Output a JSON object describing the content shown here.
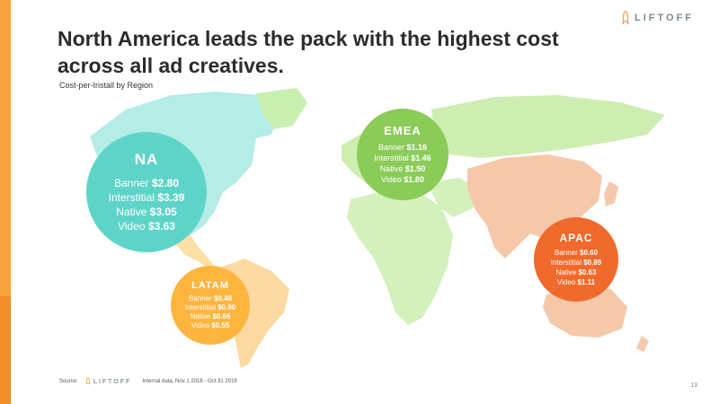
{
  "header": {
    "title": "North America leads the pack with the highest cost across all ad creatives.",
    "subtitle": "Cost-per-Install by Region",
    "logo_text": "LIFTOFF"
  },
  "colors": {
    "na": "#5ed4c8",
    "emea": "#8bcb58",
    "apac": "#f06a2b",
    "latam": "#fdb53e",
    "accent_bar": "#f7a23b"
  },
  "regions": {
    "na": {
      "name": "NA",
      "rows": [
        {
          "label": "Banner",
          "value": "$2.80"
        },
        {
          "label": "Interstitial",
          "value": "$3.39"
        },
        {
          "label": "Native",
          "value": "$3.05"
        },
        {
          "label": "Video",
          "value": "$3.63"
        }
      ]
    },
    "emea": {
      "name": "EMEA",
      "rows": [
        {
          "label": "Banner",
          "value": "$1.16"
        },
        {
          "label": "Interstitial",
          "value": "$1.46"
        },
        {
          "label": "Native",
          "value": "$1.50"
        },
        {
          "label": "Video",
          "value": "$1.80"
        }
      ]
    },
    "apac": {
      "name": "APAC",
      "rows": [
        {
          "label": "Banner",
          "value": "$0.60"
        },
        {
          "label": "Interstitial",
          "value": "$0.89"
        },
        {
          "label": "Native",
          "value": "$0.63"
        },
        {
          "label": "Video",
          "value": "$1.11"
        }
      ]
    },
    "latam": {
      "name": "LATAM",
      "rows": [
        {
          "label": "Banner",
          "value": "$0.48"
        },
        {
          "label": "Interstitial",
          "value": "$0.90"
        },
        {
          "label": "Native",
          "value": "$0.66"
        },
        {
          "label": "Video",
          "value": "$0.55"
        }
      ]
    }
  },
  "footer": {
    "source_label": "Source:",
    "logo_text": "LIFTOFF",
    "note": "Internal data, Nov 1 2018 - Oct 31 2019"
  },
  "page_number": "13"
}
